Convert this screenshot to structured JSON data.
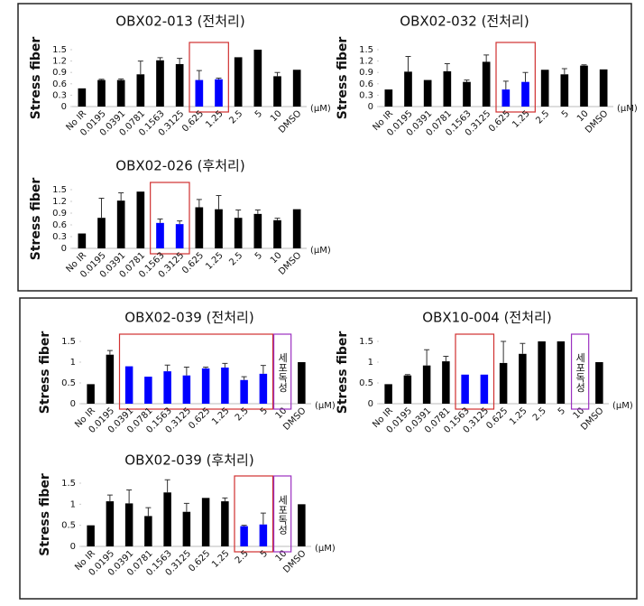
{
  "chart_data": [
    {
      "type": "bar",
      "title": "OBX02-013 (전처리)",
      "ylabel": "Stress fiber",
      "xlabel": "(μM)",
      "categories": [
        "No IR",
        "0.0195",
        "0.0391",
        "0.0781",
        "0.1563",
        "0.3125",
        "0.625",
        "1.25",
        "2.5",
        "5",
        "10",
        "DMSO"
      ],
      "values": [
        0.48,
        0.7,
        0.7,
        0.85,
        1.22,
        1.12,
        0.7,
        0.72,
        1.3,
        1.5,
        0.8,
        0.97
      ],
      "errors": [
        0,
        0.02,
        0.03,
        0.35,
        0.07,
        0.15,
        0.25,
        0.03,
        0,
        0,
        0.1,
        0
      ],
      "colors": [
        "#000000",
        "#000000",
        "#000000",
        "#000000",
        "#000000",
        "#000000",
        "#0000ff",
        "#0000ff",
        "#000000",
        "#000000",
        "#000000",
        "#000000"
      ],
      "ylim": [
        0,
        1.5
      ],
      "yticks": [
        0,
        0.3,
        0.6,
        0.9,
        1.2,
        1.5
      ]
    },
    {
      "type": "bar",
      "title": "OBX02-032 (전처리)",
      "ylabel": "Stress fiber",
      "xlabel": "(μM)",
      "categories": [
        "No IR",
        "0.0195",
        "0.0391",
        "0.0781",
        "0.1563",
        "0.3125",
        "0.625",
        "1.25",
        "2.5",
        "5",
        "10",
        "DMSO"
      ],
      "values": [
        0.45,
        0.92,
        0.7,
        0.93,
        0.65,
        1.18,
        0.45,
        0.65,
        0.97,
        0.85,
        1.08,
        0.98
      ],
      "errors": [
        0,
        0.4,
        0,
        0.2,
        0.05,
        0.18,
        0.22,
        0.25,
        0,
        0.15,
        0.02,
        0
      ],
      "colors": [
        "#000000",
        "#000000",
        "#000000",
        "#000000",
        "#000000",
        "#000000",
        "#0000ff",
        "#0000ff",
        "#000000",
        "#000000",
        "#000000",
        "#000000"
      ],
      "ylim": [
        0,
        1.5
      ],
      "yticks": [
        0,
        0.3,
        0.6,
        0.9,
        1.2,
        1.5
      ]
    },
    {
      "type": "bar",
      "title": "OBX02-026 (후처리)",
      "ylabel": "Stress fiber",
      "xlabel": "(μM)",
      "categories": [
        "No IR",
        "0.0195",
        "0.0391",
        "0.0781",
        "0.1563",
        "0.3125",
        "0.625",
        "1.25",
        "2.5",
        "5",
        "10",
        "DMSO"
      ],
      "values": [
        0.38,
        0.78,
        1.22,
        1.45,
        0.65,
        0.62,
        1.05,
        1.0,
        0.78,
        0.88,
        0.72,
        1.0
      ],
      "errors": [
        0,
        0.5,
        0.2,
        0,
        0.1,
        0.08,
        0.2,
        0.35,
        0.2,
        0.1,
        0.05,
        0
      ],
      "colors": [
        "#000000",
        "#000000",
        "#000000",
        "#000000",
        "#0000ff",
        "#0000ff",
        "#000000",
        "#000000",
        "#000000",
        "#000000",
        "#000000",
        "#000000"
      ],
      "ylim": [
        0,
        1.5
      ],
      "yticks": [
        0,
        0.3,
        0.6,
        0.9,
        1.2,
        1.5
      ]
    },
    {
      "type": "bar",
      "title": "OBX02-039 (전처리)",
      "ylabel": "Stress fiber",
      "xlabel": "(μM)",
      "annotation": "세포독성",
      "categories": [
        "No IR",
        "0.0195",
        "0.0391",
        "0.0781",
        "0.1563",
        "0.3125",
        "0.625",
        "1.25",
        "2.5",
        "5",
        "10",
        "DMSO"
      ],
      "values": [
        0.47,
        1.18,
        0.9,
        0.65,
        0.78,
        0.68,
        0.85,
        0.87,
        0.57,
        0.72,
        null,
        1.0
      ],
      "errors": [
        0,
        0.1,
        0,
        0,
        0.15,
        0.2,
        0.03,
        0.1,
        0.08,
        0.2,
        null,
        0
      ],
      "colors": [
        "#000000",
        "#000000",
        "#0000ff",
        "#0000ff",
        "#0000ff",
        "#0000ff",
        "#0000ff",
        "#0000ff",
        "#0000ff",
        "#0000ff",
        "#000000",
        "#000000"
      ],
      "ylim": [
        0,
        1.5
      ],
      "yticks": [
        0,
        0.5,
        1,
        1.5
      ]
    },
    {
      "type": "bar",
      "title": "OBX10-004 (전처리)",
      "ylabel": "Stress fiber",
      "xlabel": "(μM)",
      "annotation": "세포독성",
      "categories": [
        "No IR",
        "0.0195",
        "0.0391",
        "0.0781",
        "0.1563",
        "0.3125",
        "0.625",
        "1.25",
        "2.5",
        "5",
        "10",
        "DMSO"
      ],
      "values": [
        0.47,
        0.68,
        0.92,
        1.02,
        0.7,
        0.7,
        0.98,
        1.2,
        1.5,
        1.5,
        null,
        1.0
      ],
      "errors": [
        0,
        0.02,
        0.38,
        0.12,
        0,
        0,
        0.52,
        0.25,
        0,
        0,
        null,
        0
      ],
      "colors": [
        "#000000",
        "#000000",
        "#000000",
        "#000000",
        "#0000ff",
        "#0000ff",
        "#000000",
        "#000000",
        "#000000",
        "#000000",
        "#000000",
        "#000000"
      ],
      "ylim": [
        0,
        1.5
      ],
      "yticks": [
        0,
        0.5,
        1,
        1.5
      ]
    },
    {
      "type": "bar",
      "title": "OBX02-039 (후처리)",
      "ylabel": "Stress fiber",
      "xlabel": "(μM)",
      "annotation": "세포독성",
      "categories": [
        "No IR",
        "0.0195",
        "0.0391",
        "0.0781",
        "0.1563",
        "0.3125",
        "0.625",
        "1.25",
        "2.5",
        "5",
        "10",
        "DMSO"
      ],
      "values": [
        0.5,
        1.07,
        1.02,
        0.72,
        1.28,
        0.82,
        1.15,
        1.07,
        0.48,
        0.52,
        null,
        1.0
      ],
      "errors": [
        0,
        0.15,
        0.32,
        0.2,
        0.3,
        0.2,
        0,
        0.08,
        0.02,
        0.27,
        null,
        0
      ],
      "colors": [
        "#000000",
        "#000000",
        "#000000",
        "#000000",
        "#000000",
        "#000000",
        "#000000",
        "#000000",
        "#0000ff",
        "#0000ff",
        "#000000",
        "#000000"
      ],
      "ylim": [
        0,
        1.5
      ],
      "yticks": [
        0,
        0.5,
        1,
        1.5
      ]
    }
  ]
}
